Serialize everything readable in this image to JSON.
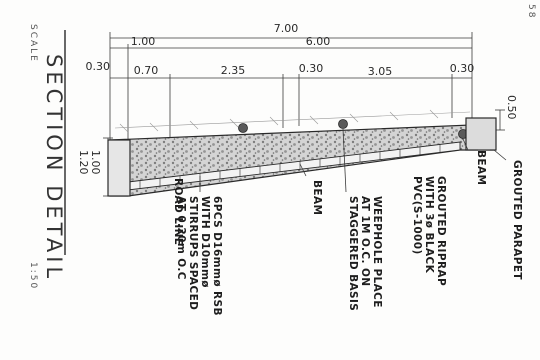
{
  "drawing": {
    "title": "SECTION DETAIL",
    "scale_label": "SCALE",
    "scale_value": "1:50",
    "corner_mark": "58"
  },
  "dimensions": {
    "overall": "7.00",
    "top": [
      "1.00",
      "6.00"
    ],
    "segments": [
      "0.30",
      "0.70",
      "2.35",
      "0.30",
      "3.05",
      "0.30"
    ],
    "right_height": "0.50",
    "left_heights": [
      "1.00",
      "1.20"
    ]
  },
  "annotations": {
    "road_line": "ROAD LINE",
    "rebar": [
      "6PCS D16mmø RSB",
      "WITH D10mmø",
      "STIRRUPS SPACED",
      "AT 0.20m O.C"
    ],
    "beam_1": "BEAM",
    "weephole": [
      "WEEPHOLE PLACE",
      "AT 1M O.C. ON",
      "STAGGERED BASIS"
    ],
    "riprap": [
      "GROUTED RIPRAP",
      "WITH 3ø BLACK",
      "PVC(S-1000)"
    ],
    "beam_2": "BEAM",
    "parapet": "GROUTED PARAPET"
  },
  "colors": {
    "ink": "#2a2a2a",
    "fill": "#c9c9c9",
    "stone": "#8e8e8e"
  }
}
